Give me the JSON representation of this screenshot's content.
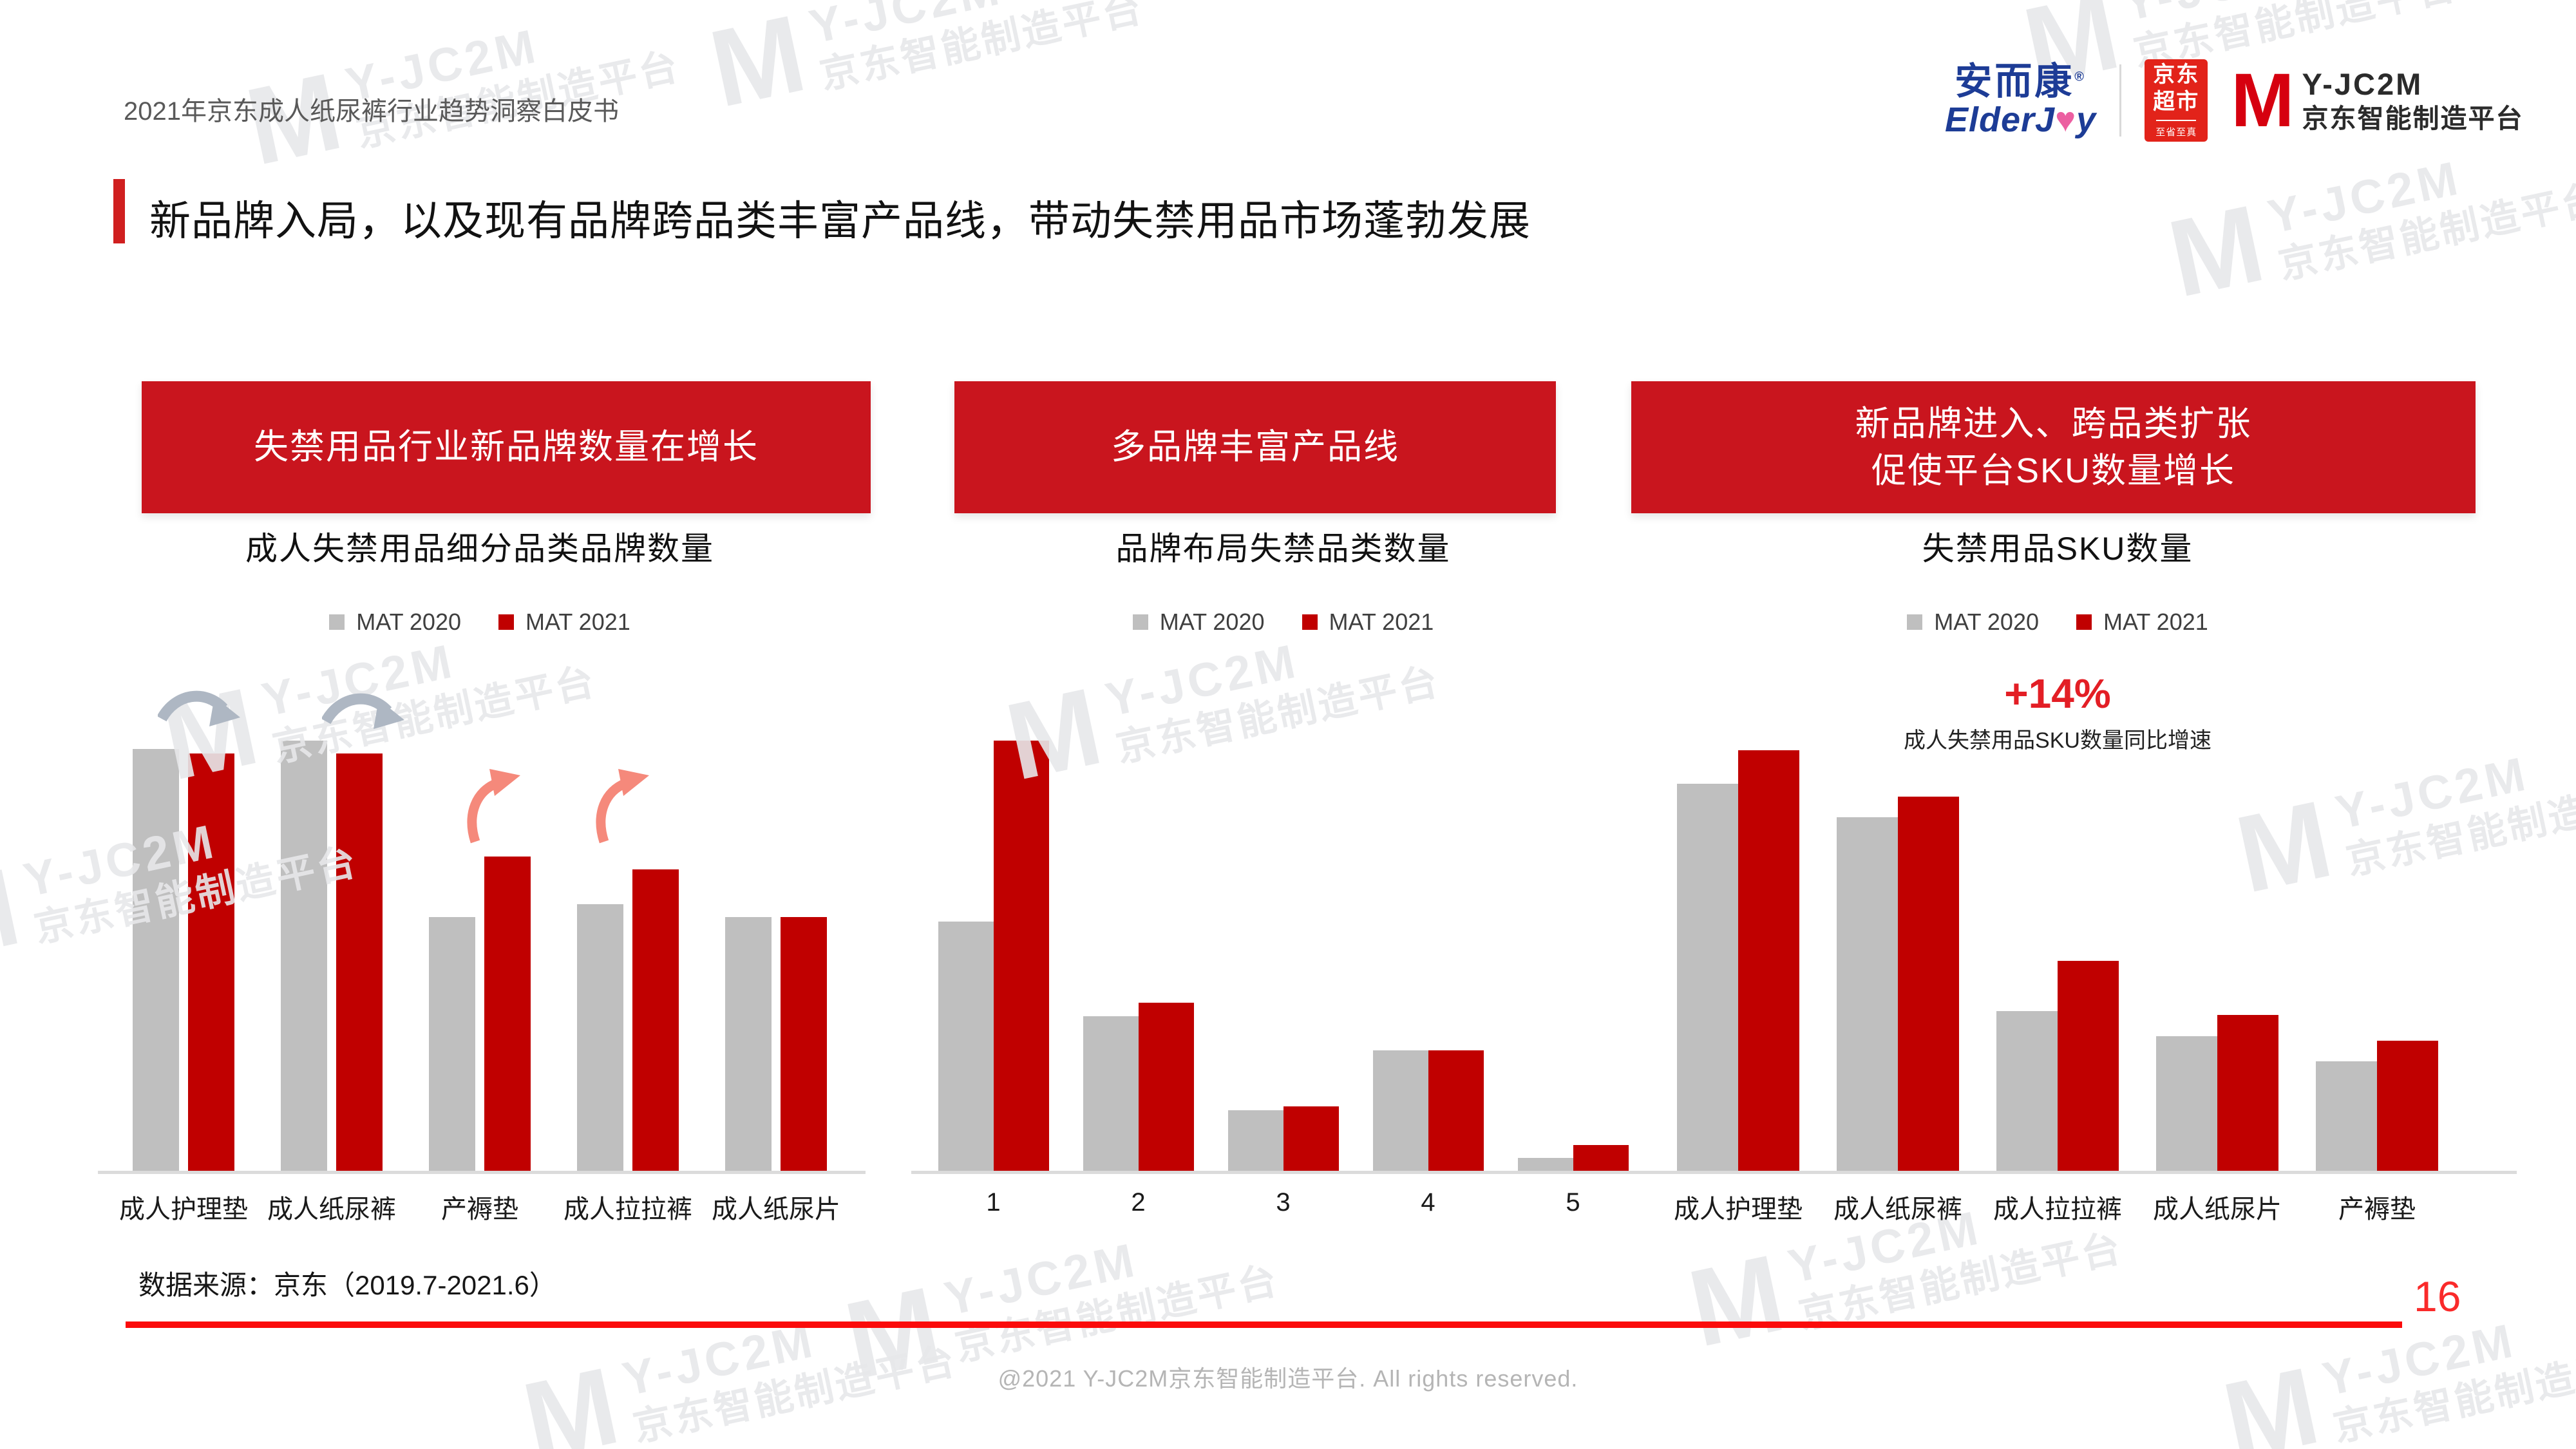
{
  "page": {
    "header": "2021年京东成人纸尿裤行业趋势洞察白皮书",
    "title": "新品牌入局，以及现有品牌跨品类丰富产品线，带动失禁用品市场蓬勃发展",
    "source_note": "数据来源：京东（2019.7-2021.6）",
    "page_number": "16",
    "copyright": "@2021 Y-JC2M京东智能制造平台. All rights reserved."
  },
  "logos": {
    "elderjoy_cn": "安而康",
    "elderjoy_reg": "®",
    "elderjoy_en_pre": "ElderJ",
    "elderjoy_en_post": "y",
    "jd_market_line1": "京东",
    "jd_market_line2": "超市",
    "jd_market_tagline": "至省至真",
    "yjc2m_name": "Y-JC2M",
    "yjc2m_cn": "京东智能制造平台"
  },
  "icons": {
    "heart": "♥"
  },
  "watermark": {
    "glyph": "M",
    "brand": "Y-JC2M",
    "brand_cn": "京东智能制造平台"
  },
  "legend": {
    "series1": "MAT 2020",
    "series2": "MAT 2021"
  },
  "panels": [
    {
      "banner": "失禁用品行业新品牌数量在增长",
      "chart_title": "成人失禁用品细分品类品牌数量"
    },
    {
      "banner": "多品牌丰富产品线",
      "chart_title": "品牌布局失禁品类数量"
    },
    {
      "banner_line1": "新品牌进入、跨品类扩张",
      "banner_line2": "促使平台SKU数量增长",
      "chart_title": "失禁用品SKU数量",
      "highlight": "+14%",
      "highlight_note": "成人失禁用品SKU数量同比增速"
    }
  ],
  "colors": {
    "banner_red": "#C9151E",
    "bar_red": "#C00000",
    "bar_gray": "#BFBFBF",
    "bright_red_line": "#FB0B0B",
    "highlight_red": "#E31E25",
    "header_gray": "#595959",
    "copyright_gray": "#B5B5B5",
    "decline_arrow_gray": "#AEB7C3",
    "growth_arrow_salmon": "#F5897B",
    "elderjoy_blue": "#1D3C96",
    "jd_red": "#E2231A"
  },
  "chart_data": [
    {
      "type": "bar",
      "title": "成人失禁用品细分品类品牌数量",
      "categories": [
        "成人护理垫",
        "成人纸尿裤",
        "产褥垫",
        "成人拉拉裤",
        "成人纸尿片"
      ],
      "series": [
        {
          "name": "MAT 2020",
          "values": [
            98,
            100,
            59,
            62,
            59
          ]
        },
        {
          "name": "MAT 2021",
          "values": [
            97,
            97,
            73,
            70,
            59
          ]
        }
      ],
      "unit": "relative bar height, % of tallest bar (no numeric axis shown in source)",
      "legend_position": "top",
      "grid": false,
      "annotations": [
        {
          "type": "decline-arrow",
          "over": "成人护理垫"
        },
        {
          "type": "decline-arrow",
          "over": "成人纸尿裤"
        },
        {
          "type": "growth-arrow",
          "over": "产褥垫"
        },
        {
          "type": "growth-arrow",
          "over": "成人拉拉裤"
        }
      ]
    },
    {
      "type": "bar",
      "title": "品牌布局失禁品类数量",
      "categories": [
        "1",
        "2",
        "3",
        "4",
        "5"
      ],
      "series": [
        {
          "name": "MAT 2020",
          "values": [
            58,
            36,
            14,
            28,
            3
          ]
        },
        {
          "name": "MAT 2021",
          "values": [
            100,
            39,
            15,
            28,
            6
          ]
        }
      ],
      "unit": "relative bar height, % of tallest bar (no numeric axis shown in source)",
      "legend_position": "top",
      "grid": false
    },
    {
      "type": "bar",
      "title": "失禁用品SKU数量",
      "categories": [
        "成人护理垫",
        "成人纸尿裤",
        "成人拉拉裤",
        "成人纸尿片",
        "产褥垫"
      ],
      "series": [
        {
          "name": "MAT 2020",
          "values": [
            92,
            84,
            38,
            32,
            26
          ]
        },
        {
          "name": "MAT 2021",
          "values": [
            100,
            89,
            50,
            37,
            31
          ]
        }
      ],
      "unit": "relative bar height, % of tallest bar (no numeric axis shown in source)",
      "legend_position": "top",
      "grid": false,
      "annotation": {
        "text": "+14%",
        "note": "成人失禁用品SKU数量同比增速"
      }
    }
  ]
}
